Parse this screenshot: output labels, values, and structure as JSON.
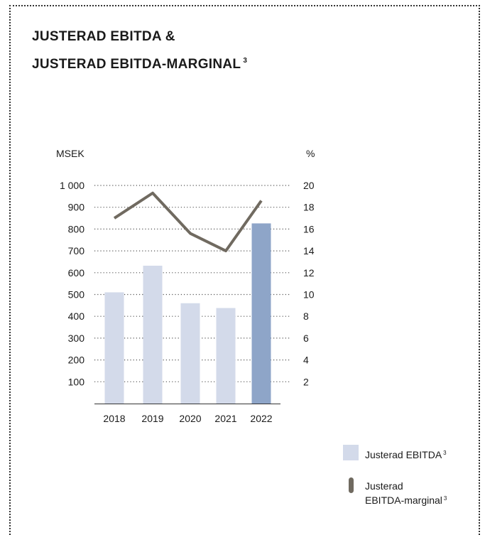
{
  "title": {
    "line1": "JUSTERAD EBITDA &",
    "line2": "JUSTERAD EBITDA-MARGINAL",
    "footnote": "3"
  },
  "chart_data": {
    "type": "bar",
    "categories": [
      "2018",
      "2019",
      "2020",
      "2021",
      "2022"
    ],
    "series": [
      {
        "name": "Justerad EBITDA",
        "kind": "bar",
        "axis": "left",
        "values": [
          510,
          632,
          460,
          438,
          826
        ],
        "colors": [
          "#d3daea",
          "#d3daea",
          "#d3daea",
          "#d3daea",
          "#8ea5c8"
        ]
      },
      {
        "name": "Justerad EBITDA-marginal",
        "kind": "line",
        "axis": "right",
        "values": [
          17.0,
          19.3,
          15.6,
          14.0,
          18.6
        ],
        "color": "#706a60"
      }
    ],
    "yleft": {
      "label": "MSEK",
      "ylim": [
        0,
        1000
      ],
      "ticks": [
        100,
        200,
        300,
        400,
        500,
        600,
        700,
        800,
        900,
        1000
      ],
      "tick_labels": [
        "100",
        "200",
        "300",
        "400",
        "500",
        "600",
        "700",
        "800",
        "900",
        "1 000"
      ]
    },
    "yright": {
      "label": "%",
      "ylim": [
        0,
        20
      ],
      "ticks": [
        2,
        4,
        6,
        8,
        10,
        12,
        14,
        16,
        18,
        20
      ],
      "tick_labels": [
        "2",
        "4",
        "6",
        "8",
        "10",
        "12",
        "14",
        "16",
        "18",
        "20"
      ]
    },
    "grid": "dotted horizontal",
    "legend_position": "bottom-right"
  },
  "legend": {
    "bar_label": "Justerad EBITDA",
    "bar_footnote": "3",
    "line_label_1": "Justerad",
    "line_label_2": "EBITDA-marginal",
    "line_footnote": "3"
  }
}
